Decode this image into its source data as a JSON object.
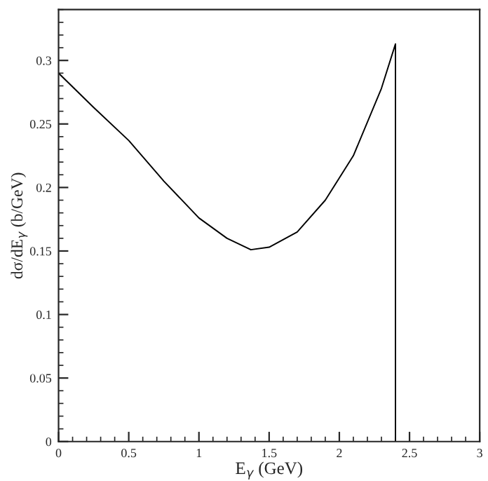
{
  "chart_data": {
    "type": "line",
    "xlabel": "E$_{γ}$ (GeV)",
    "ylabel": "dσ/dE$_{γ}$ (b/GeV)",
    "series": [
      {
        "color": "#000000",
        "x": [
          0,
          0.25,
          0.5,
          0.75,
          1.0,
          1.2,
          1.37,
          1.5,
          1.7,
          1.9,
          2.1,
          2.3,
          2.4,
          2.4
        ],
        "values": [
          0.29,
          0.263,
          0.237,
          0.205,
          0.176,
          0.16,
          0.151,
          0.153,
          0.165,
          0.19,
          0.225,
          0.278,
          0.313,
          0
        ]
      }
    ],
    "xlim": [
      0,
      3
    ],
    "xticks": [
      0,
      0.5,
      1,
      1.5,
      2,
      2.5,
      3
    ],
    "ylim": [
      0,
      0.34
    ],
    "yticks": [
      0,
      0.05,
      0.1,
      0.15,
      0.2,
      0.25,
      0.3
    ],
    "grid": false,
    "legend": false
  }
}
